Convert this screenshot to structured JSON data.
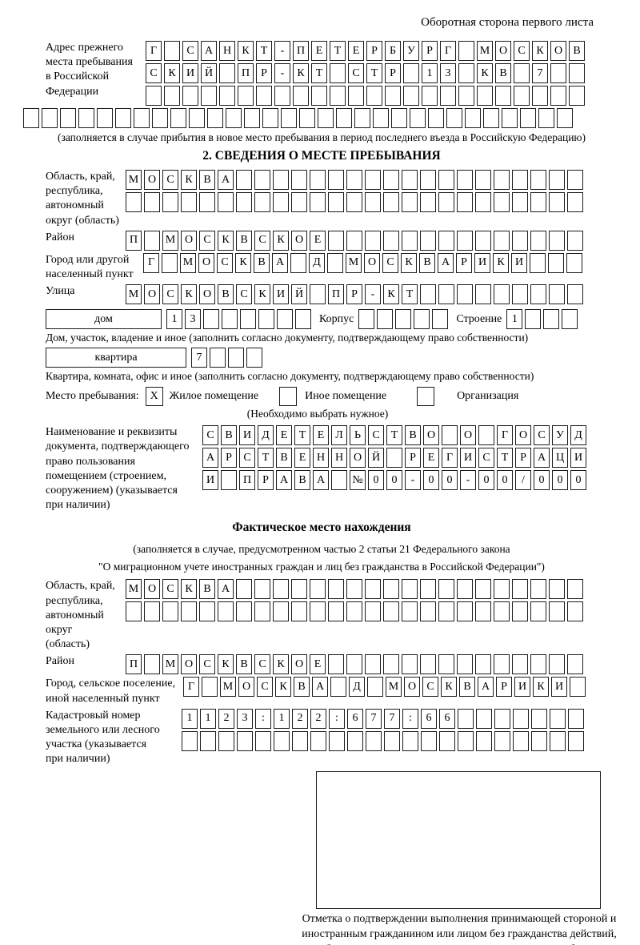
{
  "header": {
    "note": "Оборотная сторона первого листа"
  },
  "prev_address": {
    "label": "Адрес прежнего\nместа пребывания\nв Российской\nФедерации",
    "row1": {
      "chars": "Г САНКТ-ПЕТЕРБУРГ МОСКОВ",
      "count": 24
    },
    "row2": {
      "chars": "СКИЙ ПР-КТ СТР 13 КВ 7",
      "count": 24
    },
    "row3": {
      "chars": "",
      "count": 24
    },
    "row4": {
      "chars": "",
      "count": 30
    },
    "caption": "(заполняется в случае прибытия в новое место пребывания в период последнего въезда в Российскую Федерацию)"
  },
  "section2": {
    "title": "2. СВЕДЕНИЯ О МЕСТЕ ПРЕБЫВАНИЯ",
    "region": {
      "label": "Область, край,\nреспублика,\nавтономный\nокруг (область)",
      "row1": {
        "chars": "МОСКВА",
        "count": 25
      },
      "row2": {
        "chars": "",
        "count": 25
      }
    },
    "district": {
      "label": "Район",
      "row": {
        "chars": "П МОСКВСКОЕ",
        "count": 25
      }
    },
    "city": {
      "label": "Город или другой\nнаселенный пункт",
      "row": {
        "chars": "Г МОСКВА Д МОСКВАРИКИ",
        "count": 24
      }
    },
    "street": {
      "label": "Улица",
      "row": {
        "chars": "МОСКОВСКИЙ ПР-КТ",
        "count": 25
      }
    },
    "house": {
      "field_label": "дом",
      "row": {
        "chars": "13",
        "count": 8
      },
      "korpus_label": "Корпус",
      "korpus_row": {
        "chars": "",
        "count": 5
      },
      "stroenie_label": "Строение",
      "stroenie_row": {
        "chars": "1",
        "count": 4
      },
      "caption": "Дом, участок, владение и иное (заполнить согласно документу, подтверждающему право собственности)"
    },
    "apartment": {
      "field_label": "квартира",
      "row": {
        "chars": "7",
        "count": 4
      },
      "caption": "Квартира, комната, офис и иное (заполнить согласно документу, подтверждающему право собственности)"
    },
    "stay_type": {
      "label": "Место пребывания:",
      "options": [
        {
          "label": "Жилое помещение",
          "checked": "X"
        },
        {
          "label": "Иное помещение",
          "checked": ""
        },
        {
          "label": "Организация",
          "checked": ""
        }
      ],
      "note": "(Необходимо выбрать нужное)"
    },
    "document": {
      "label": "Наименование и реквизиты\nдокумента, подтверждающего\nправо пользования\nпомещением (строением,\nсооружением) (указывается\nпри наличии)",
      "row1": {
        "chars": "СВИДЕТЕЛЬСТВО О ГОСУД",
        "count": 21
      },
      "row2": {
        "chars": "АРСТВЕННОЙ РЕГИСТРАЦИ",
        "count": 21
      },
      "row3": {
        "chars": "И ПРАВА №00-00-00/000",
        "count": 21
      }
    }
  },
  "fact_location": {
    "title": "Фактическое место нахождения",
    "caption1": "(заполняется в случае, предусмотренном частью 2 статьи 21 Федерального закона",
    "caption2": "\"О миграционном учете иностранных граждан и лиц без гражданства в Российской Федерации\")",
    "region": {
      "label": "Область, край,\nреспублика,\nавтономный округ\n(область)",
      "row1": {
        "chars": "МОСКВА",
        "count": 25
      },
      "row2": {
        "chars": "",
        "count": 25
      }
    },
    "district": {
      "label": "Район",
      "row": {
        "chars": "П МОСКВСКОЕ",
        "count": 25
      }
    },
    "city": {
      "label": "Город, сельское поселение,\nиной населенный пункт",
      "row": {
        "chars": "Г МОСКВА Д МОСКВАРИКИ",
        "count": 22
      }
    },
    "cadastre": {
      "label": "Кадастровый номер\nземельного или лесного\nучастка (указывается\nпри наличии)",
      "row1": {
        "chars": "1123:122:677:66",
        "count": 22
      },
      "row2": {
        "chars": "",
        "count": 22
      }
    },
    "stamp_caption": "Отметка о подтверждении выполнения принимающей стороной и иностранным гражданином или лицом без гражданства действий, необходимых для его постановки на учет по месту пребывания"
  }
}
